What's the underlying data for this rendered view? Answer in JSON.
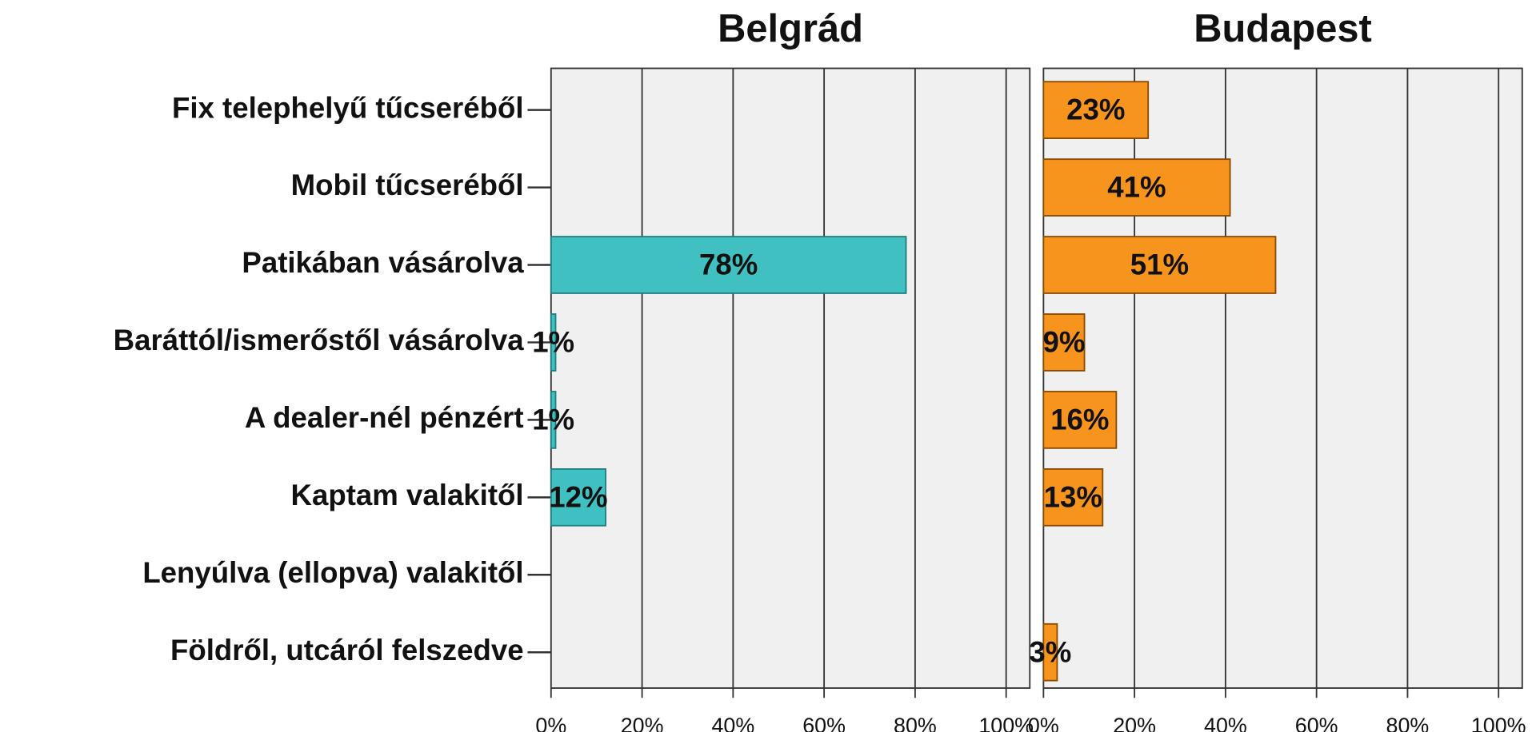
{
  "chart_data": {
    "type": "bar",
    "orientation": "horizontal",
    "layout": "panels",
    "categories": [
      "Fix telephelyű tűcseréből",
      "Mobil tűcseréből",
      "Patikában vásárolva",
      "Baráttól/ismerőstől vásárolva",
      "A dealer-nél pénzért",
      "Kaptam valakitől",
      "Lenyúlva (ellopva) valakitől",
      "Földről, utcáról felszedve"
    ],
    "series": [
      {
        "name": "Belgrád",
        "color": "#40c0c0",
        "values": [
          null,
          null,
          78,
          1,
          1,
          12,
          null,
          null
        ],
        "value_labels": [
          null,
          null,
          "78%",
          "1%",
          "1%",
          "12%",
          null,
          null
        ]
      },
      {
        "name": "Budapest",
        "color": "#f7941d",
        "values": [
          23,
          41,
          51,
          9,
          16,
          13,
          null,
          3
        ],
        "value_labels": [
          "23%",
          "41%",
          "51%",
          "9%",
          "16%",
          "13%",
          null,
          "3%"
        ]
      }
    ],
    "xlim": [
      0,
      105.2
    ],
    "xticks": [
      {
        "value": 0,
        "label": "0%"
      },
      {
        "value": 20,
        "label": "20%"
      },
      {
        "value": 40,
        "label": "40%"
      },
      {
        "value": 60,
        "label": "60%"
      },
      {
        "value": 80,
        "label": "80%"
      },
      {
        "value": 100,
        "label": "100%"
      }
    ],
    "grid": true
  }
}
